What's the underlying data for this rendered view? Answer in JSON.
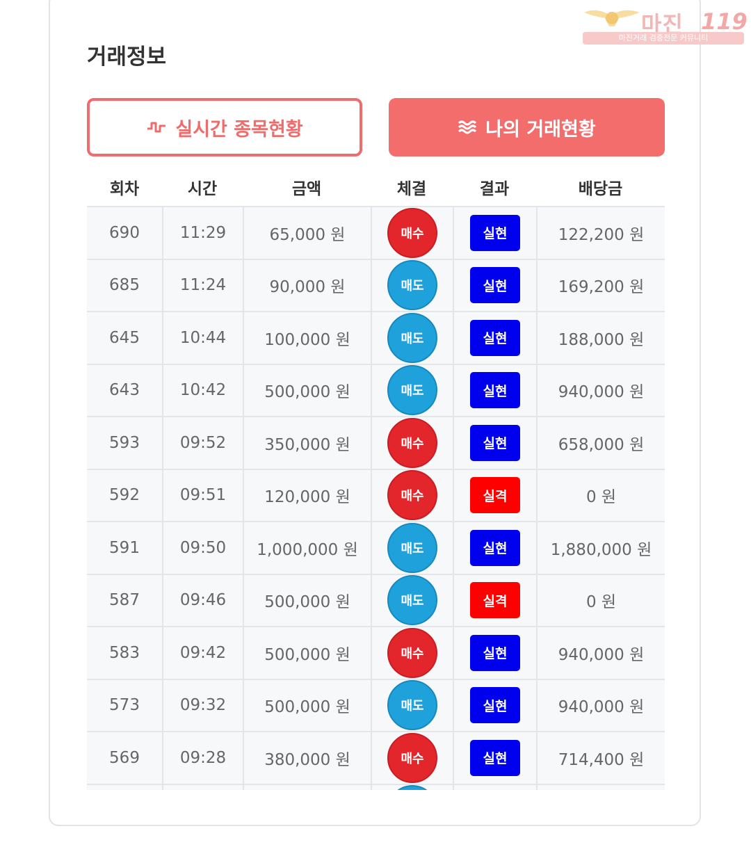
{
  "watermark": {
    "brand": "마진",
    "number": "119",
    "tagline": "마진거래 검증전문 커뮤니티"
  },
  "section_title": "거래정보",
  "tabs": {
    "live": "실시간 종목현황",
    "mine": "나의 거래현황"
  },
  "columns": [
    "회차",
    "시간",
    "금액",
    "체결",
    "결과",
    "배당금"
  ],
  "rows": [
    {
      "round": "690",
      "time": "11:29",
      "amount": "65,000 원",
      "side": "매수",
      "result": "실현",
      "payout": "122,200 원"
    },
    {
      "round": "685",
      "time": "11:24",
      "amount": "90,000 원",
      "side": "매도",
      "result": "실현",
      "payout": "169,200 원"
    },
    {
      "round": "645",
      "time": "10:44",
      "amount": "100,000 원",
      "side": "매도",
      "result": "실현",
      "payout": "188,000 원"
    },
    {
      "round": "643",
      "time": "10:42",
      "amount": "500,000 원",
      "side": "매도",
      "result": "실현",
      "payout": "940,000 원"
    },
    {
      "round": "593",
      "time": "09:52",
      "amount": "350,000 원",
      "side": "매수",
      "result": "실현",
      "payout": "658,000 원"
    },
    {
      "round": "592",
      "time": "09:51",
      "amount": "120,000 원",
      "side": "매수",
      "result": "실격",
      "payout": "0 원"
    },
    {
      "round": "591",
      "time": "09:50",
      "amount": "1,000,000 원",
      "side": "매도",
      "result": "실현",
      "payout": "1,880,000 원"
    },
    {
      "round": "587",
      "time": "09:46",
      "amount": "500,000 원",
      "side": "매도",
      "result": "실격",
      "payout": "0 원"
    },
    {
      "round": "583",
      "time": "09:42",
      "amount": "500,000 원",
      "side": "매수",
      "result": "실현",
      "payout": "940,000 원"
    },
    {
      "round": "573",
      "time": "09:32",
      "amount": "500,000 원",
      "side": "매도",
      "result": "실현",
      "payout": "940,000 원"
    },
    {
      "round": "569",
      "time": "09:28",
      "amount": "380,000 원",
      "side": "매수",
      "result": "실현",
      "payout": "714,400 원"
    },
    {
      "round": "",
      "time": "",
      "amount": "",
      "side": "매도",
      "result": "",
      "payout": ""
    }
  ],
  "colors": {
    "accent": "#f36d6d",
    "buy": "#e3262b",
    "sell": "#1fa2dc",
    "realized": "#0000ee",
    "disqualified": "#ff0000"
  }
}
